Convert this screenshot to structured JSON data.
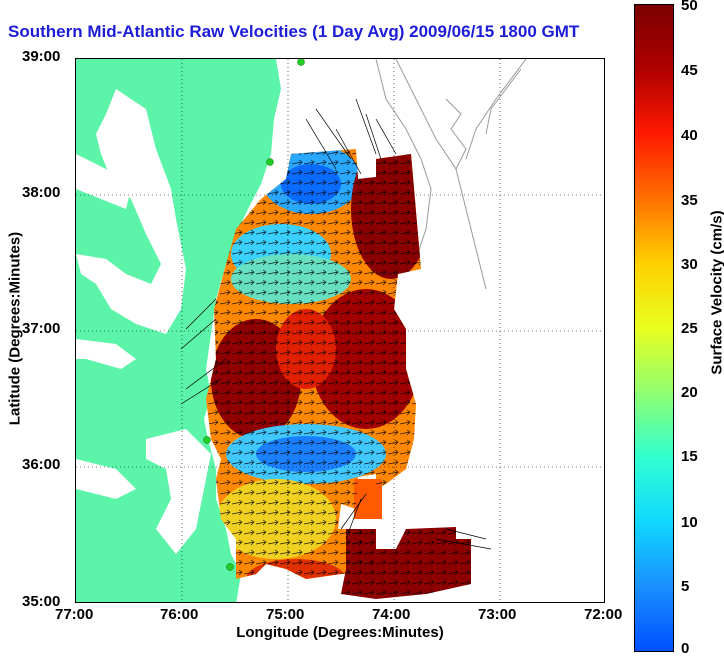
{
  "title": "Southern Mid-Atlantic Raw Velocities (1 Day Avg) 2009/06/15 1800 GMT",
  "x_axis": {
    "label": "Longitude (Degrees:Minutes)",
    "ticks": [
      "77:00",
      "76:00",
      "75:00",
      "74:00",
      "73:00",
      "72:00"
    ]
  },
  "y_axis": {
    "label": "Latitude (Degrees:Minutes)",
    "ticks": [
      "39:00",
      "38:00",
      "37:00",
      "36:00",
      "35:00"
    ]
  },
  "colorbar": {
    "label": "Surface Velocity (cm/s)",
    "ticks": [
      "50",
      "45",
      "40",
      "35",
      "30",
      "25",
      "20",
      "15",
      "10",
      "5",
      "0"
    ],
    "range": [
      0,
      50
    ]
  },
  "colors": {
    "land": "#5cf4a8",
    "title": "#1d1dd8",
    "bathymetry": "#9a9a9a",
    "grid": "#000000",
    "station": "#22cc22"
  },
  "map": {
    "lon_range": [
      -77,
      -72
    ],
    "lat_range": [
      35,
      39
    ],
    "grid": "dotted",
    "vector_color": "#000000"
  }
}
